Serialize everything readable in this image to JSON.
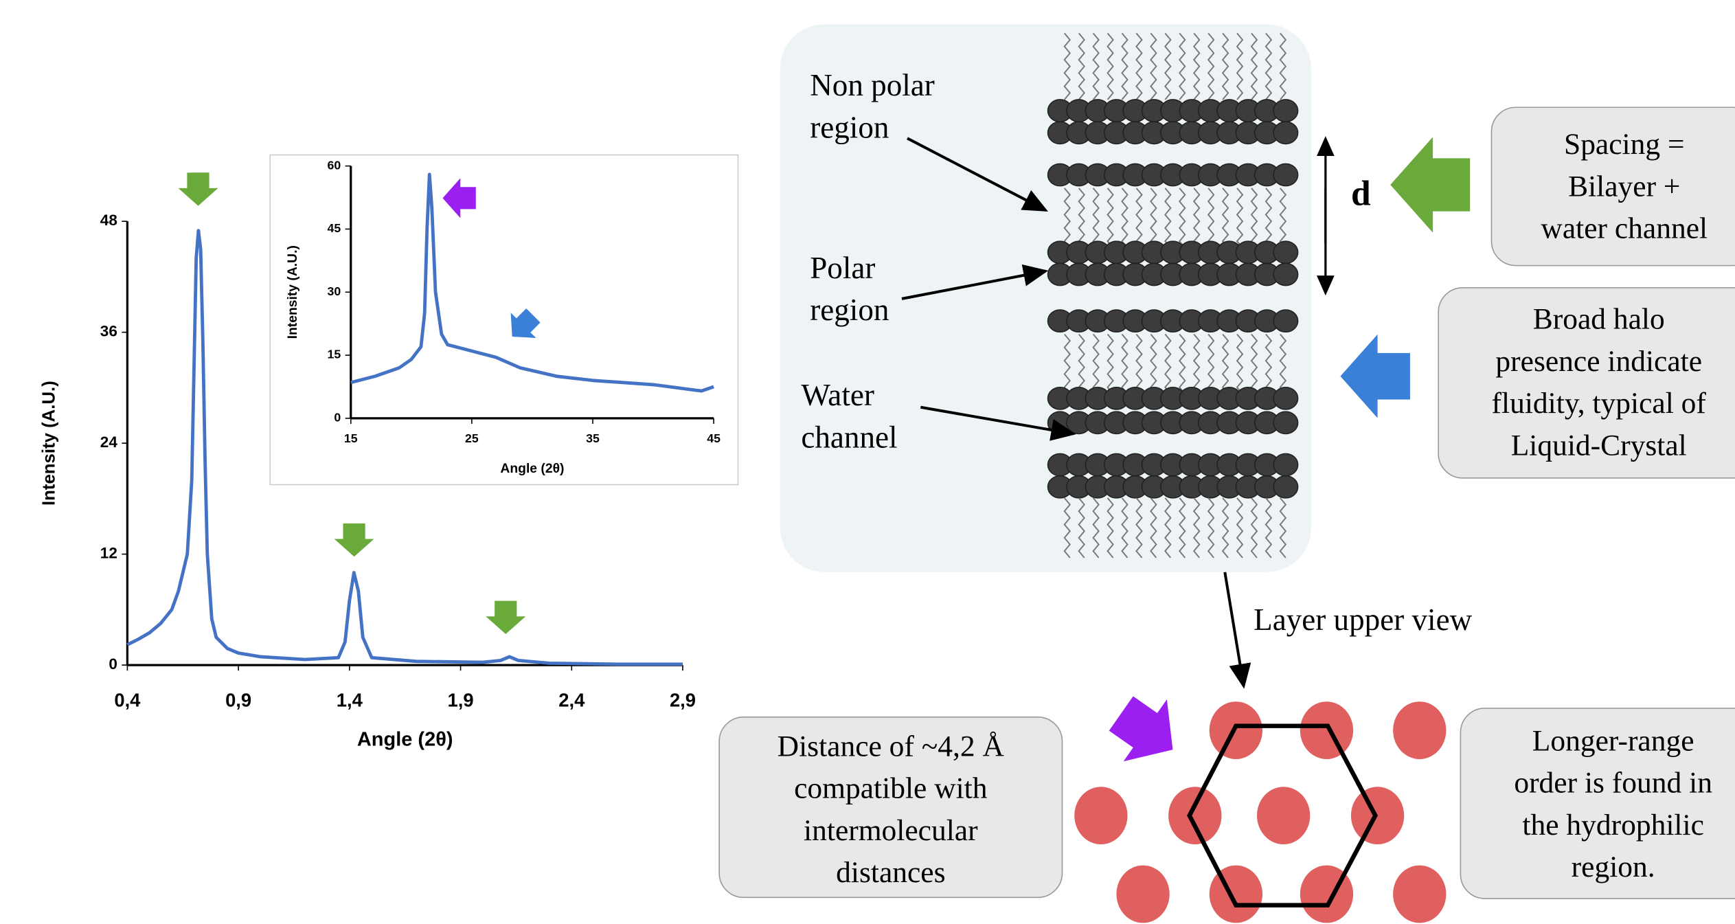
{
  "chart_data": [
    {
      "type": "line",
      "x_label": "Angle (2θ)",
      "y_label": "Intensity (A.U.)",
      "xlim": [
        0.4,
        2.9
      ],
      "ylim": [
        0,
        48
      ],
      "xticks": [
        {
          "value": 0.4,
          "label": "0,4"
        },
        {
          "value": 0.9,
          "label": "0,9"
        },
        {
          "value": 1.4,
          "label": "1,4"
        },
        {
          "value": 1.9,
          "label": "1,9"
        },
        {
          "value": 2.4,
          "label": "2,4"
        },
        {
          "value": 2.9,
          "label": "2,9"
        }
      ],
      "yticks": [
        0,
        12,
        24,
        36,
        48
      ],
      "series": [
        {
          "color": "#4472c4",
          "x": [
            0.4,
            0.45,
            0.5,
            0.55,
            0.6,
            0.63,
            0.65,
            0.67,
            0.69,
            0.7,
            0.71,
            0.72,
            0.73,
            0.74,
            0.75,
            0.76,
            0.78,
            0.8,
            0.85,
            0.9,
            1.0,
            1.2,
            1.35,
            1.38,
            1.4,
            1.42,
            1.44,
            1.46,
            1.5,
            1.7,
            2.0,
            2.08,
            2.12,
            2.16,
            2.3,
            2.6,
            2.9
          ],
          "values": [
            2.2,
            2.8,
            3.5,
            4.5,
            6,
            8,
            10,
            12,
            20,
            32,
            44,
            47,
            45,
            35,
            22,
            12,
            5,
            3,
            1.8,
            1.3,
            0.9,
            0.6,
            0.8,
            2.5,
            7,
            10,
            8,
            3,
            0.8,
            0.4,
            0.3,
            0.5,
            0.9,
            0.5,
            0.2,
            0.1,
            0.1
          ]
        }
      ]
    },
    {
      "type": "line",
      "x_label": "Angle (2θ)",
      "y_label": "Intensity (A.U.)",
      "xlim": [
        15,
        45
      ],
      "ylim": [
        0,
        60
      ],
      "xticks": [
        15,
        25,
        35,
        45
      ],
      "yticks": [
        0,
        15,
        30,
        45,
        60
      ],
      "series": [
        {
          "color": "#4472c4",
          "x": [
            15,
            17,
            19,
            20,
            20.8,
            21.1,
            21.3,
            21.5,
            21.7,
            22,
            22.5,
            23,
            25,
            27,
            29,
            32,
            35,
            40,
            44,
            45
          ],
          "values": [
            8.5,
            10,
            12,
            14,
            17,
            25,
            45,
            58,
            50,
            30,
            20,
            17.5,
            16,
            14.5,
            12,
            10,
            9,
            8,
            6.5,
            7.5
          ]
        }
      ]
    }
  ],
  "diagram": {
    "non_polar": [
      "Non polar",
      "region"
    ],
    "polar": [
      "Polar",
      "region"
    ],
    "water": [
      "Water",
      "channel"
    ],
    "d": "d",
    "spacing": [
      "Spacing =",
      "Bilayer +",
      "water channel"
    ],
    "halo": [
      "Broad halo",
      "presence indicate",
      "fluidity, typical of",
      "Liquid-Crystal"
    ],
    "upper_view": "Layer upper view",
    "distance": [
      "Distance of ~4,2 Å",
      "compatible with",
      "intermolecular",
      "distances"
    ],
    "longer": [
      "Longer-range",
      "order is found in",
      "the hydrophilic",
      "region."
    ]
  }
}
